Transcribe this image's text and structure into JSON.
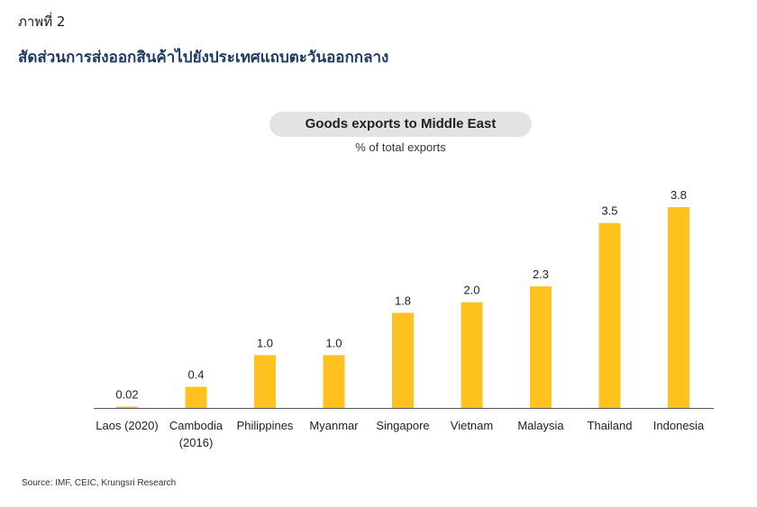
{
  "figure_label": "ภาพที่ 2",
  "figure_title": "สัดส่วนการส่งออกสินค้าไปยังประเทศแถบตะวันออกกลาง",
  "source": "Source: IMF, CEIC, Krungsri Research",
  "colors": {
    "bar": "#FFC21F",
    "axis": "#555555",
    "title": "#1f3b63"
  },
  "chart_data": {
    "type": "bar",
    "title": "Goods exports to Middle East",
    "subtitle": "% of total exports",
    "categories": [
      [
        "Laos (2020)"
      ],
      [
        "Cambodia",
        "(2016)"
      ],
      [
        "Philippines"
      ],
      [
        "Myanmar"
      ],
      [
        "Singapore"
      ],
      [
        "Vietnam"
      ],
      [
        "Malaysia"
      ],
      [
        "Thailand"
      ],
      [
        "Indonesia"
      ]
    ],
    "values": [
      0.02,
      0.4,
      1.0,
      1.0,
      1.8,
      2.0,
      2.3,
      3.5,
      3.8
    ],
    "value_labels": [
      "0.02",
      "0.4",
      "1.0",
      "1.0",
      "1.8",
      "2.0",
      "2.3",
      "3.5",
      "3.8"
    ],
    "ylim": [
      0,
      3.8
    ],
    "xlabel": "",
    "ylabel": "",
    "grid": false,
    "legend": "none"
  }
}
